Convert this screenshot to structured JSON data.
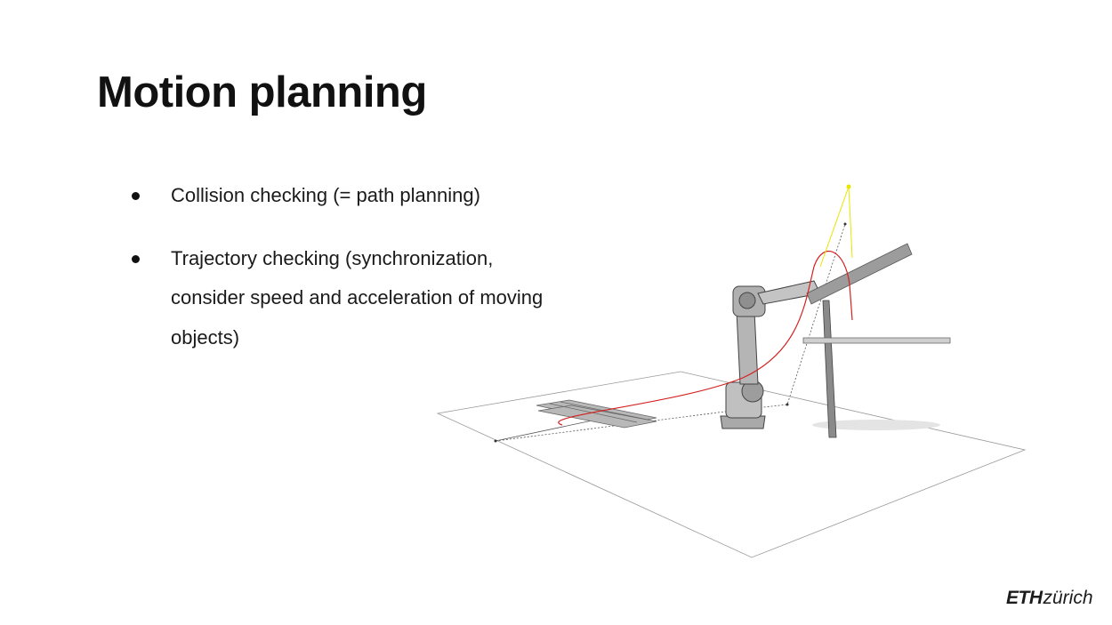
{
  "slide": {
    "title": "Motion planning",
    "bullets": [
      "Collision checking (= path planning)",
      "Trajectory checking (synchronization, consider speed and acceleration of moving objects)"
    ]
  },
  "illustration": {
    "subject": "industrial-robot-arm-scene",
    "path_color": "#d42020",
    "target_color": "#e6e600"
  },
  "logo": {
    "eth": "ETH",
    "zurich": "zürich"
  }
}
